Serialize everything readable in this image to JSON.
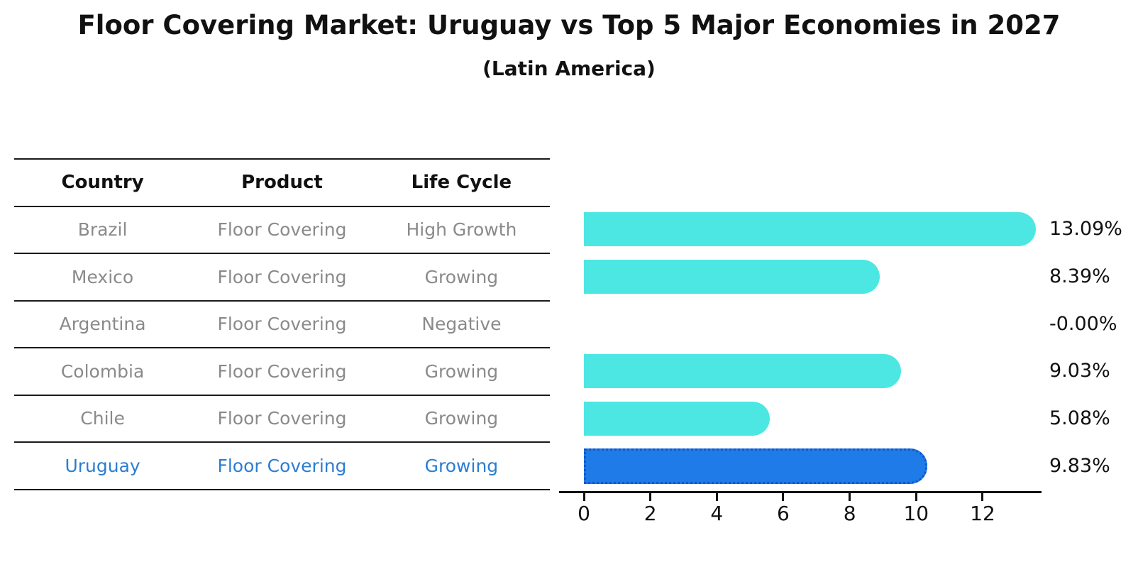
{
  "header": {
    "title": "Floor Covering Market: Uruguay vs Top 5 Major Economies in 2027",
    "subtitle": "(Latin America)"
  },
  "table": {
    "columns": [
      "Country",
      "Product",
      "Life Cycle"
    ],
    "rows": [
      {
        "country": "Brazil",
        "product": "Floor Covering",
        "life_cycle": "High Growth",
        "highlight": false
      },
      {
        "country": "Mexico",
        "product": "Floor Covering",
        "life_cycle": "Growing",
        "highlight": false
      },
      {
        "country": "Argentina",
        "product": "Floor Covering",
        "life_cycle": "Negative",
        "highlight": false
      },
      {
        "country": "Colombia",
        "product": "Floor Covering",
        "life_cycle": "Growing",
        "highlight": false
      },
      {
        "country": "Chile",
        "product": "Floor Covering",
        "life_cycle": "Growing",
        "highlight": false
      },
      {
        "country": "Uruguay",
        "product": "Floor Covering",
        "life_cycle": "Growing",
        "highlight": true
      }
    ]
  },
  "chart_data": {
    "type": "bar",
    "orientation": "horizontal",
    "title": "Floor Covering Market: Uruguay vs Top 5 Major Economies in 2027 (Latin America)",
    "categories": [
      "Brazil",
      "Mexico",
      "Argentina",
      "Colombia",
      "Chile",
      "Uruguay"
    ],
    "values": [
      13.09,
      8.39,
      -0.0,
      9.03,
      5.08,
      9.83
    ],
    "value_labels": [
      "13.09%",
      "8.39%",
      "-0.00%",
      "9.03%",
      "5.08%",
      "9.83%"
    ],
    "units": "percent growth",
    "x_ticks": [
      0,
      2,
      4,
      6,
      8,
      10,
      12
    ],
    "xlim": [
      -0.75,
      13.8
    ],
    "grid": false,
    "legend": false,
    "highlight_index": 5,
    "bar_color": "#4DE7E3",
    "highlight_bar_color": "#1E7BE8",
    "highlight_border_color": "#1157C6",
    "highlight_text_color": "#2B7DD2",
    "muted_text_color": "#8A8A8A"
  }
}
